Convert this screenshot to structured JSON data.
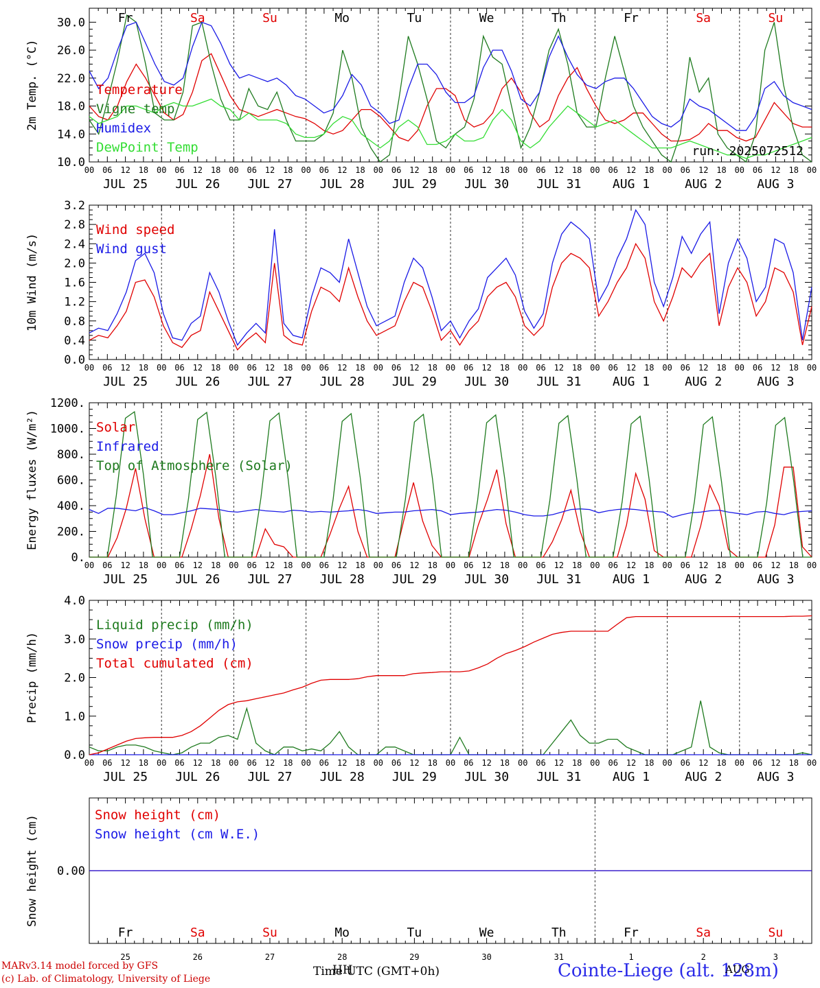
{
  "colors": {
    "red": "#e00000",
    "blue": "#1a1ae6",
    "dkgreen": "#1e7a1e",
    "ltgreen": "#33dd33",
    "black": "#000000"
  },
  "weekdays": [
    {
      "label": "Fr",
      "weekend": false
    },
    {
      "label": "Sa",
      "weekend": true
    },
    {
      "label": "Su",
      "weekend": true
    },
    {
      "label": "Mo",
      "weekend": false
    },
    {
      "label": "Tu",
      "weekend": false
    },
    {
      "label": "We",
      "weekend": false
    },
    {
      "label": "Th",
      "weekend": false
    },
    {
      "label": "Fr",
      "weekend": false
    },
    {
      "label": "Sa",
      "weekend": true
    },
    {
      "label": "Su",
      "weekend": true
    }
  ],
  "date_labels": [
    "JUL 25",
    "JUL 26",
    "JUL 27",
    "JUL 28",
    "JUL 29",
    "JUL 30",
    "JUL 31",
    "AUG  1",
    "AUG  2",
    "AUG  3"
  ],
  "day_numbers": [
    "25",
    "26",
    "27",
    "28",
    "29",
    "30",
    "31",
    "1",
    "2",
    "3"
  ],
  "hour_ticks": [
    "00",
    "06",
    "12",
    "18"
  ],
  "footer": {
    "model": "MARv3.14 model forced by GFS",
    "lab": "(c) Lab. of Climatology, University of Liege",
    "xlabel": "Time UTC (GMT+0h)",
    "overlap": "HH",
    "station": "Cointe-Liege (alt. 128m)",
    "station_overlap": "AUG"
  },
  "chart_data": [
    {
      "type": "line",
      "ylabel": "2m Temp. (°C)",
      "yticks": [
        "10.0",
        "14.0",
        "18.0",
        "22.0",
        "26.0",
        "30.0"
      ],
      "ylim": [
        10,
        32
      ],
      "annotation": "run: 2025072512",
      "x_unit": "hours since JUL 25 00 UTC (3-hourly)",
      "series": [
        {
          "name": "Temperature",
          "color": "red",
          "values": [
            18,
            16.5,
            16,
            18,
            21.5,
            24,
            22,
            19.5,
            17,
            16,
            16.8,
            20,
            24.5,
            25.5,
            22.5,
            19.5,
            17.5,
            17,
            16.5,
            17,
            17.5,
            17,
            16.5,
            16.2,
            15.5,
            14.5,
            14,
            14.5,
            16,
            17.5,
            17.5,
            16.5,
            15,
            13.5,
            13,
            14.5,
            18,
            20.5,
            20.5,
            19.5,
            16,
            15,
            15.5,
            17,
            20.5,
            22,
            20,
            17,
            15,
            16,
            19.5,
            22,
            23.5,
            20.5,
            18,
            16,
            15.5,
            16,
            17,
            17,
            15.5,
            14,
            13,
            13,
            13.2,
            14,
            15.5,
            14.5,
            14.5,
            13.5,
            13,
            13.5,
            16,
            18.5,
            17,
            15.5,
            15,
            15
          ]
        },
        {
          "name": "Vigne temp",
          "color": "dkgreen",
          "values": [
            16,
            14,
            19,
            24.5,
            31,
            30,
            24,
            17,
            16,
            16,
            20,
            29.5,
            30,
            24,
            19,
            16,
            16,
            20.5,
            18,
            17.5,
            20,
            16,
            13,
            13,
            13,
            14,
            17,
            26,
            22,
            15,
            12,
            9,
            11,
            19,
            28,
            24,
            19,
            13,
            12,
            14,
            15,
            19,
            28,
            25,
            24,
            18,
            12,
            15,
            20,
            26,
            29,
            24,
            17,
            15,
            15,
            22,
            28,
            23,
            18,
            15,
            13,
            11,
            10,
            14,
            25,
            20,
            22,
            14,
            12,
            11,
            10,
            14,
            26,
            30,
            21,
            15,
            11,
            9
          ]
        },
        {
          "name": "Humidex",
          "color": "blue",
          "values": [
            23,
            20.5,
            22,
            26,
            29.5,
            30,
            27,
            24,
            21.5,
            21,
            22,
            26.5,
            30,
            29.5,
            27,
            24,
            22,
            22.5,
            22,
            21.5,
            22,
            21,
            19.5,
            19,
            18,
            17,
            17.5,
            19.5,
            22.5,
            21,
            18,
            17,
            15.5,
            16,
            20.5,
            24,
            24,
            22.5,
            20,
            18.5,
            18.5,
            19.5,
            23.5,
            26,
            26,
            23,
            19,
            18,
            20,
            25,
            28,
            25,
            22.5,
            21,
            20.5,
            21.5,
            22,
            22,
            20.5,
            18.5,
            16.5,
            15.5,
            15,
            16,
            19,
            18,
            17.5,
            16.5,
            15.5,
            14.5,
            14.5,
            16.5,
            20.5,
            21.5,
            19.5,
            18.5,
            18,
            17.5
          ]
        },
        {
          "name": "DewPoint Temp",
          "color": "ltgreen",
          "values": [
            16.5,
            15.5,
            16,
            16.5,
            18,
            18,
            17.5,
            17,
            18,
            18.5,
            18,
            18,
            18.5,
            19,
            18,
            17.5,
            16,
            17,
            16,
            16,
            16,
            15.5,
            14,
            13.5,
            13.5,
            14,
            15.5,
            16.5,
            16,
            14,
            13,
            12,
            13,
            15,
            16,
            15,
            12.5,
            12.5,
            13,
            14,
            13,
            13,
            13.5,
            16,
            17.5,
            16,
            13,
            12,
            13,
            15,
            16.5,
            18,
            17,
            16,
            15,
            15.5,
            16,
            15,
            14,
            13,
            12,
            12,
            12,
            12.5,
            13,
            12.5,
            12,
            11.5,
            11,
            11,
            10.5,
            11,
            11,
            11.5,
            12,
            12.5,
            13,
            13.5
          ]
        }
      ]
    },
    {
      "type": "line",
      "ylabel": "10m Wind (m/s)",
      "yticks": [
        "0.0",
        "0.4",
        "0.8",
        "1.2",
        "1.6",
        "2.0",
        "2.4",
        "2.8",
        "3.2"
      ],
      "ylim": [
        0,
        3.2
      ],
      "series": [
        {
          "name": "Wind speed",
          "color": "red",
          "values": [
            0.4,
            0.5,
            0.45,
            0.7,
            1.0,
            1.6,
            1.65,
            1.3,
            0.7,
            0.35,
            0.25,
            0.5,
            0.6,
            1.4,
            1.0,
            0.6,
            0.2,
            0.4,
            0.55,
            0.35,
            2.0,
            0.5,
            0.35,
            0.3,
            1.0,
            1.5,
            1.4,
            1.2,
            1.9,
            1.3,
            0.8,
            0.5,
            0.6,
            0.7,
            1.2,
            1.6,
            1.5,
            1.0,
            0.4,
            0.6,
            0.3,
            0.6,
            0.8,
            1.3,
            1.5,
            1.6,
            1.3,
            0.7,
            0.5,
            0.7,
            1.5,
            2.0,
            2.2,
            2.1,
            1.9,
            0.9,
            1.2,
            1.6,
            1.9,
            2.4,
            2.1,
            1.2,
            0.8,
            1.3,
            1.9,
            1.7,
            2.0,
            2.2,
            0.7,
            1.5,
            1.9,
            1.6,
            0.9,
            1.2,
            1.9,
            1.8,
            1.4,
            0.3,
            1.1
          ]
        },
        {
          "name": "Wind gust",
          "color": "blue",
          "values": [
            0.55,
            0.65,
            0.6,
            0.95,
            1.4,
            2.05,
            2.2,
            1.8,
            0.95,
            0.45,
            0.4,
            0.75,
            0.9,
            1.8,
            1.4,
            0.8,
            0.3,
            0.55,
            0.75,
            0.55,
            2.7,
            0.75,
            0.5,
            0.45,
            1.3,
            1.9,
            1.8,
            1.6,
            2.5,
            1.8,
            1.1,
            0.7,
            0.8,
            0.9,
            1.6,
            2.1,
            1.9,
            1.3,
            0.6,
            0.8,
            0.45,
            0.8,
            1.05,
            1.7,
            1.9,
            2.1,
            1.75,
            1.0,
            0.65,
            0.95,
            2.0,
            2.6,
            2.85,
            2.7,
            2.5,
            1.2,
            1.55,
            2.1,
            2.5,
            3.1,
            2.8,
            1.6,
            1.1,
            1.7,
            2.55,
            2.2,
            2.6,
            2.85,
            0.95,
            2.0,
            2.5,
            2.1,
            1.2,
            1.5,
            2.5,
            2.4,
            1.8,
            0.4,
            1.5
          ]
        }
      ]
    },
    {
      "type": "line",
      "ylabel": "Energy fluxes (W/m²)",
      "yticks": [
        "0.",
        "200.",
        "400.",
        "600.",
        "800.",
        "1000.",
        "1200."
      ],
      "ylim": [
        0,
        1200
      ],
      "series": [
        {
          "name": "Solar",
          "color": "red",
          "values": [
            0,
            0,
            0,
            150,
            380,
            690,
            300,
            0,
            0,
            0,
            0,
            220,
            480,
            800,
            300,
            0,
            0,
            0,
            0,
            220,
            100,
            80,
            0,
            0,
            0,
            0,
            180,
            380,
            550,
            200,
            0,
            0,
            0,
            0,
            300,
            580,
            280,
            90,
            0,
            0,
            0,
            0,
            250,
            450,
            680,
            260,
            0,
            0,
            0,
            0,
            120,
            290,
            520,
            200,
            0,
            0,
            0,
            0,
            250,
            650,
            450,
            50,
            0,
            0,
            0,
            0,
            240,
            560,
            400,
            60,
            0,
            0,
            0,
            0,
            250,
            700,
            700,
            80,
            0
          ]
        },
        {
          "name": "Infrared",
          "color": "blue",
          "values": [
            370,
            340,
            380,
            380,
            370,
            360,
            385,
            360,
            330,
            330,
            345,
            360,
            380,
            375,
            370,
            355,
            350,
            360,
            370,
            360,
            355,
            350,
            365,
            360,
            350,
            355,
            350,
            355,
            360,
            370,
            360,
            340,
            345,
            350,
            350,
            360,
            365,
            370,
            360,
            330,
            340,
            345,
            350,
            360,
            370,
            365,
            350,
            330,
            320,
            320,
            330,
            350,
            370,
            375,
            370,
            345,
            360,
            370,
            375,
            370,
            360,
            355,
            350,
            310,
            330,
            345,
            350,
            360,
            365,
            350,
            340,
            330,
            350,
            355,
            340,
            330,
            350,
            355,
            360
          ]
        },
        {
          "name": "Top of Atmosphere (Solar)",
          "color": "dkgreen",
          "values": [
            0,
            0,
            0,
            480,
            1080,
            1130,
            640,
            0,
            0,
            0,
            0,
            460,
            1070,
            1125,
            630,
            0,
            0,
            0,
            0,
            460,
            1060,
            1120,
            620,
            0,
            0,
            0,
            0,
            450,
            1055,
            1115,
            620,
            0,
            0,
            0,
            0,
            450,
            1050,
            1110,
            610,
            0,
            0,
            0,
            0,
            440,
            1045,
            1105,
            610,
            0,
            0,
            0,
            0,
            440,
            1040,
            1100,
            600,
            0,
            0,
            0,
            0,
            430,
            1035,
            1095,
            600,
            0,
            0,
            0,
            0,
            430,
            1030,
            1090,
            590,
            0,
            0,
            0,
            0,
            420,
            1025,
            1085,
            590,
            0,
            0
          ]
        }
      ]
    },
    {
      "type": "line",
      "ylabel": "Precip (mm/h)",
      "yticks": [
        "0.0",
        "1.0",
        "2.0",
        "3.0",
        "4.0"
      ],
      "ylim": [
        0,
        4
      ],
      "series": [
        {
          "name": "Liquid precip (mm/h)",
          "color": "dkgreen",
          "values": [
            0.2,
            0.1,
            0.1,
            0.2,
            0.25,
            0.25,
            0.2,
            0.1,
            0.05,
            0,
            0.05,
            0.2,
            0.3,
            0.3,
            0.45,
            0.5,
            0.4,
            1.2,
            0.3,
            0.1,
            0,
            0.2,
            0.2,
            0.1,
            0.15,
            0.1,
            0.3,
            0.6,
            0.2,
            0,
            0,
            0,
            0.2,
            0.2,
            0.1,
            0,
            0,
            0,
            0,
            0,
            0.45,
            0,
            0,
            0,
            0,
            0,
            0,
            0,
            0,
            0,
            0.3,
            0.6,
            0.9,
            0.5,
            0.3,
            0.3,
            0.4,
            0.4,
            0.2,
            0.1,
            0,
            0,
            0,
            0,
            0.1,
            0.2,
            1.4,
            0.2,
            0.05,
            0,
            0,
            0,
            0,
            0,
            0,
            0,
            0,
            0.05,
            0
          ]
        },
        {
          "name": "Snow precip (mm/h)",
          "color": "blue",
          "values": [
            0,
            0
          ]
        },
        {
          "name": "Total cumulated (cm)",
          "color": "red",
          "values": [
            0,
            0.05,
            0.15,
            0.25,
            0.35,
            0.42,
            0.44,
            0.45,
            0.45,
            0.45,
            0.5,
            0.6,
            0.75,
            0.95,
            1.15,
            1.3,
            1.37,
            1.4,
            1.45,
            1.5,
            1.55,
            1.6,
            1.68,
            1.75,
            1.85,
            1.93,
            1.95,
            1.95,
            1.95,
            1.97,
            2.02,
            2.05,
            2.05,
            2.05,
            2.05,
            2.1,
            2.12,
            2.13,
            2.15,
            2.15,
            2.15,
            2.17,
            2.25,
            2.35,
            2.5,
            2.62,
            2.7,
            2.8,
            2.92,
            3.02,
            3.12,
            3.17,
            3.2,
            3.2,
            3.2,
            3.2,
            3.2,
            3.38,
            3.55,
            3.58,
            3.58,
            3.58,
            3.58,
            3.58,
            3.58,
            3.58,
            3.58,
            3.58,
            3.58,
            3.58,
            3.58,
            3.58,
            3.58,
            3.58,
            3.58,
            3.58,
            3.59,
            3.59,
            3.6
          ]
        }
      ]
    },
    {
      "type": "line",
      "ylabel": "Snow height (cm)",
      "yticks": [
        "0.00"
      ],
      "ylim": [
        -1,
        1
      ],
      "series": [
        {
          "name": "Snow height (cm)",
          "color": "red",
          "values": [
            0,
            0
          ]
        },
        {
          "name": "Snow height (cm W.E.)",
          "color": "blue",
          "values": [
            0,
            0
          ]
        }
      ]
    }
  ]
}
